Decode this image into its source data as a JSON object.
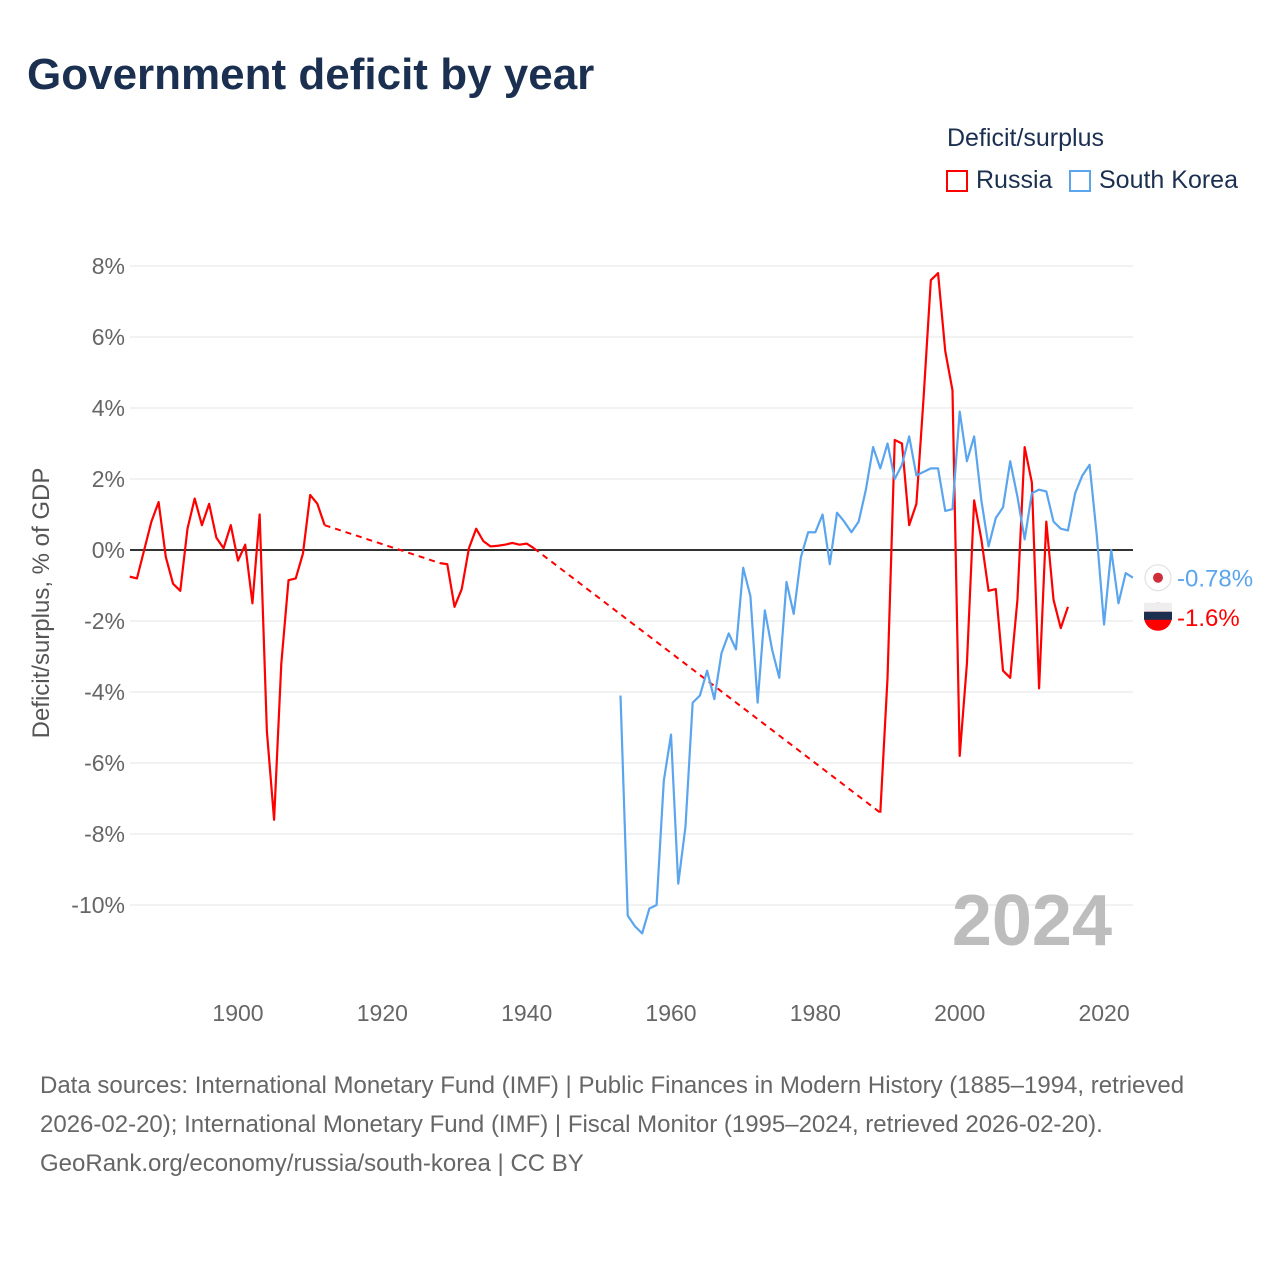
{
  "title": "Government deficit by year",
  "legend": {
    "title": "Deficit/surplus",
    "items": [
      {
        "name": "Russia",
        "color": "#ff0000"
      },
      {
        "name": "South Korea",
        "color": "#5aa5ee"
      }
    ]
  },
  "year_label": "2024",
  "end_labels": {
    "south_korea": "-0.78%",
    "russia": "-1.6%"
  },
  "source_text": "Data sources: International Monetary Fund (IMF) | Public Finances in Modern History (1885–1994, retrieved 2026-02-20); International Monetary Fund (IMF) | Fiscal Monitor (1995–2024, retrieved 2026-02-20).",
  "source_link": "GeoRank.org/economy/russia/south-korea | CC BY",
  "chart_data": {
    "type": "line",
    "title": "Government deficit by year",
    "xlabel": "",
    "ylabel": "Deficit/surplus, % of GDP",
    "xlim": [
      1885,
      2024
    ],
    "ylim": [
      -11.5,
      8.5
    ],
    "xticks": [
      1900,
      1920,
      1940,
      1960,
      1980,
      2000,
      2020
    ],
    "yticks": [
      8,
      6,
      4,
      2,
      0,
      -2,
      -4,
      -6,
      -8,
      -10
    ],
    "ytick_labels": [
      "8%",
      "6%",
      "4%",
      "2%",
      "0%",
      "-2%",
      "-4%",
      "-6%",
      "-8%",
      "-10%"
    ],
    "grid": true,
    "legend_position": "top-right",
    "series": [
      {
        "name": "Russia",
        "color": "#ff0000",
        "start_year": 1885,
        "values": [
          -0.75,
          -0.8,
          0,
          0.8,
          1.35,
          -0.2,
          -0.95,
          -1.15,
          0.6,
          1.45,
          0.7,
          1.3,
          0.35,
          0.05,
          0.7,
          -0.3,
          0.15,
          -1.5,
          1.0,
          -5.1,
          -7.6,
          -3.2,
          -0.85,
          -0.8,
          -0.1,
          1.55,
          1.3,
          0.7,
          null,
          null,
          null,
          null,
          null,
          null,
          null,
          null,
          null,
          null,
          null,
          null,
          null,
          null,
          null,
          -0.37,
          -0.4,
          -1.6,
          -1.1,
          0.05,
          0.6,
          0.25,
          0.1,
          0.12,
          0.15,
          0.2,
          0.15,
          0.18,
          0.05,
          null,
          null,
          null,
          null,
          null,
          null,
          null,
          null,
          null,
          null,
          null,
          null,
          null,
          null,
          null,
          null,
          null,
          null,
          null,
          null,
          null,
          null,
          null,
          null,
          null,
          null,
          null,
          null,
          null,
          null,
          null,
          null,
          null,
          null,
          null,
          null,
          null,
          null,
          null,
          null,
          null,
          null,
          null,
          null,
          null,
          null,
          null,
          -7.4,
          -3.6,
          3.1,
          3.0,
          0.7,
          1.3,
          4.3,
          7.6,
          7.8,
          5.6,
          4.5,
          -5.8,
          -3.2,
          1.4,
          0.3,
          -1.15,
          -1.1,
          -3.4,
          -3.6,
          -1.4,
          2.9,
          1.9,
          -3.9,
          0.8,
          -1.4,
          -2.2,
          -1.6
        ]
      },
      {
        "name": "South Korea",
        "color": "#5aa5ee",
        "start_year": 1953,
        "values": [
          -4.1,
          -10.3,
          -10.6,
          -10.8,
          -10.1,
          -10.0,
          -6.5,
          -5.2,
          -9.4,
          -7.8,
          -4.3,
          -4.1,
          -3.4,
          -4.2,
          -2.9,
          -2.35,
          -2.8,
          -0.5,
          -1.3,
          -4.3,
          -1.7,
          -2.8,
          -3.6,
          -0.9,
          -1.8,
          -0.2,
          0.5,
          0.5,
          1.0,
          -0.4,
          1.05,
          0.8,
          0.5,
          0.8,
          1.7,
          2.9,
          2.3,
          3.0,
          2.0,
          2.4,
          3.2,
          2.1,
          2.2,
          2.3,
          2.3,
          1.1,
          1.15,
          3.9,
          2.5,
          3.2,
          1.4,
          0.1,
          0.9,
          1.2,
          2.5,
          1.5,
          0.3,
          1.6,
          1.7,
          1.65,
          0.8,
          0.6,
          0.55,
          1.6,
          2.1,
          2.4,
          0.4,
          -2.1,
          0.0,
          -1.5,
          -0.65,
          -0.78
        ]
      }
    ]
  }
}
